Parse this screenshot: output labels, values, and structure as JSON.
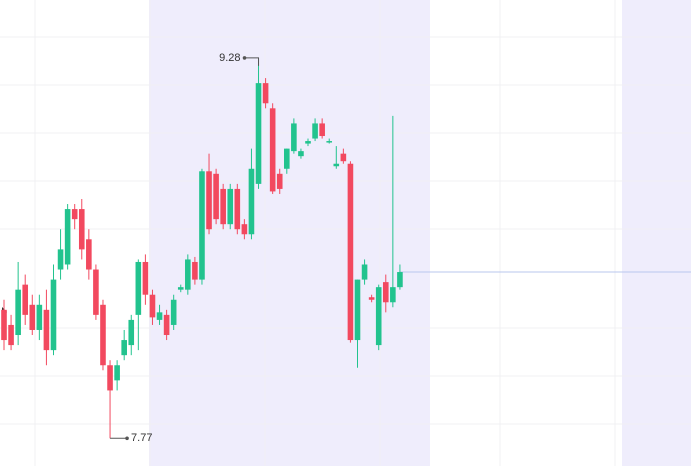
{
  "chart_data": {
    "type": "candlestick",
    "ylim": [
      7.66,
      9.51
    ],
    "up_color": "#22c38e",
    "down_color": "#f2495f",
    "last_price_line_color": "#b9c7ee",
    "high_marker": 9.28,
    "low_marker": 7.77,
    "open": [
      8.28,
      8.22,
      8.18,
      8.38,
      8.3,
      8.2,
      8.28,
      8.12,
      8.44,
      8.46,
      8.68,
      8.68,
      8.56,
      8.44,
      8.3,
      8.06,
      8.0,
      8.1,
      8.14,
      8.26,
      8.47,
      8.34,
      8.24,
      8.26,
      8.22,
      8.36,
      8.36,
      8.47,
      8.4,
      8.83,
      8.82,
      8.76,
      8.62,
      8.76,
      8.62,
      8.58,
      8.78,
      9.18,
      9.08,
      8.82,
      8.84,
      8.91,
      8.89,
      8.94,
      8.96,
      9.02,
      8.95,
      8.85,
      8.9,
      8.86,
      8.16,
      8.4,
      8.33,
      8.14,
      8.39,
      8.31,
      8.37
    ],
    "high": [
      8.32,
      8.26,
      8.47,
      8.42,
      8.34,
      8.34,
      8.36,
      8.46,
      8.6,
      8.7,
      8.7,
      8.72,
      8.6,
      8.46,
      8.32,
      8.08,
      8.08,
      8.2,
      8.26,
      8.48,
      8.5,
      8.36,
      8.3,
      8.28,
      8.34,
      8.38,
      8.5,
      8.49,
      8.84,
      8.9,
      8.84,
      8.78,
      8.78,
      8.78,
      8.64,
      8.92,
      9.28,
      9.2,
      9.1,
      8.84,
      8.92,
      9.04,
      8.92,
      8.96,
      9.04,
      9.04,
      8.96,
      8.93,
      8.92,
      8.87,
      8.4,
      8.48,
      8.34,
      8.38,
      8.42,
      9.05,
      8.46
    ],
    "low": [
      8.12,
      8.12,
      8.14,
      8.22,
      8.18,
      8.16,
      8.06,
      8.1,
      8.4,
      8.44,
      8.6,
      8.48,
      8.4,
      8.24,
      8.04,
      7.77,
      7.96,
      8.08,
      8.1,
      8.12,
      8.3,
      8.22,
      8.22,
      8.16,
      8.2,
      8.35,
      8.34,
      8.38,
      8.38,
      8.58,
      8.62,
      8.6,
      8.6,
      8.58,
      8.56,
      8.56,
      8.76,
      9.08,
      8.74,
      8.74,
      8.82,
      8.9,
      8.88,
      8.93,
      8.95,
      8.96,
      8.94,
      8.84,
      8.86,
      8.15,
      8.05,
      8.38,
      8.31,
      8.12,
      8.27,
      8.29,
      8.36
    ],
    "close": [
      8.16,
      8.14,
      8.36,
      8.26,
      8.2,
      8.3,
      8.12,
      8.4,
      8.52,
      8.68,
      8.64,
      8.52,
      8.44,
      8.26,
      8.06,
      7.96,
      8.06,
      8.16,
      8.24,
      8.47,
      8.34,
      8.25,
      8.27,
      8.18,
      8.32,
      8.37,
      8.48,
      8.4,
      8.83,
      8.6,
      8.64,
      8.62,
      8.76,
      8.6,
      8.58,
      8.84,
      9.18,
      9.1,
      8.75,
      8.76,
      8.92,
      9.02,
      8.91,
      8.95,
      9.02,
      8.97,
      8.95,
      8.86,
      8.87,
      8.16,
      8.4,
      8.46,
      8.32,
      8.37,
      8.31,
      8.37,
      8.43
    ]
  }
}
